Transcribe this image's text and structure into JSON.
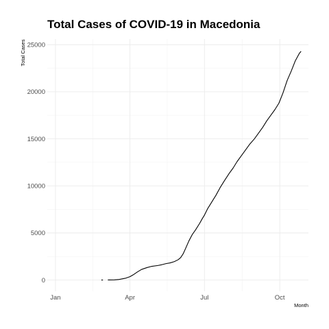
{
  "chart_data": {
    "type": "line",
    "title": "Total Cases of COVID-19 in Macedonia",
    "xlabel": "Month",
    "ylabel": "Total Cases",
    "x_ticks": [
      "Jan",
      "Apr",
      "Jul",
      "Oct"
    ],
    "x_tick_dates": [
      "2020-01-01",
      "2020-04-01",
      "2020-07-01",
      "2020-10-01"
    ],
    "y_ticks": [
      0,
      5000,
      10000,
      15000,
      20000,
      25000
    ],
    "xlim": [
      "2019-12-22",
      "2020-11-05"
    ],
    "ylim": [
      -1200,
      25600
    ],
    "grid": true,
    "legend": "none",
    "line_color": "#000000",
    "series": [
      {
        "x": [
          "2020-02-26",
          "2020-02-28",
          "2020-03-05",
          "2020-03-07",
          "2020-03-13",
          "2020-03-18",
          "2020-03-22",
          "2020-03-27",
          "2020-04-01",
          "2020-04-05",
          "2020-04-10",
          "2020-04-15",
          "2020-04-18",
          "2020-04-22",
          "2020-04-27",
          "2020-05-05",
          "2020-05-10",
          "2020-05-15",
          "2020-05-20",
          "2020-05-25",
          "2020-05-30",
          "2020-06-02",
          "2020-06-05",
          "2020-06-08",
          "2020-06-12",
          "2020-06-16",
          "2020-06-20",
          "2020-06-25",
          "2020-06-28",
          "2020-07-01",
          "2020-07-05",
          "2020-07-10",
          "2020-07-15",
          "2020-07-20",
          "2020-07-25",
          "2020-07-31",
          "2020-08-05",
          "2020-08-10",
          "2020-08-15",
          "2020-08-20",
          "2020-08-25",
          "2020-08-31",
          "2020-09-05",
          "2020-09-10",
          "2020-09-15",
          "2020-09-20",
          "2020-09-25",
          "2020-09-30",
          "2020-10-05",
          "2020-10-10",
          "2020-10-15",
          "2020-10-20",
          "2020-10-25",
          "2020-10-27"
        ],
        "y": [
          1,
          1,
          3,
          7,
          14,
          48,
          114,
          200,
          354,
          555,
          854,
          1117,
          1207,
          1326,
          1442,
          1539,
          1629,
          1740,
          1817,
          1950,
          2164,
          2391,
          2790,
          3364,
          4157,
          4820,
          5311,
          6000,
          6470,
          6900,
          7600,
          8300,
          9000,
          9800,
          10500,
          11300,
          11900,
          12600,
          13200,
          13800,
          14400,
          15000,
          15600,
          16200,
          16900,
          17500,
          18100,
          18800,
          19900,
          21200,
          22200,
          23300,
          24100,
          24300
        ]
      }
    ]
  }
}
